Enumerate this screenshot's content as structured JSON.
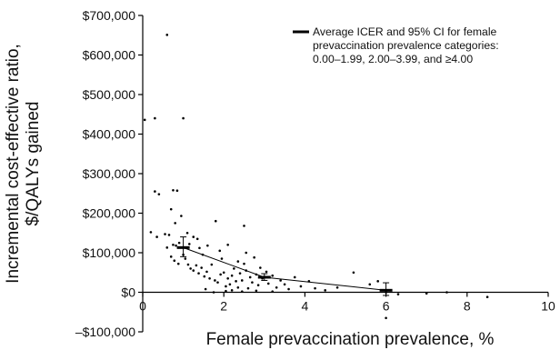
{
  "chart_data": {
    "type": "scatter",
    "xlabel": "Female prevaccination prevalence, %",
    "ylabel_lines": [
      "Incremental cost-effective ratio,",
      "$/QALYs gained"
    ],
    "xlim": [
      0,
      10
    ],
    "ylim": [
      -100000,
      700000
    ],
    "x_ticks": [
      {
        "value": 0,
        "label": "0"
      },
      {
        "value": 2,
        "label": "2"
      },
      {
        "value": 4,
        "label": "4"
      },
      {
        "value": 6,
        "label": "6"
      },
      {
        "value": 8,
        "label": "8"
      },
      {
        "value": 10,
        "label": "10"
      }
    ],
    "y_ticks": [
      {
        "value": -100000,
        "label": "–$100,000"
      },
      {
        "value": 0,
        "label": "$0"
      },
      {
        "value": 100000,
        "label": "$100,000"
      },
      {
        "value": 200000,
        "label": "$200,000"
      },
      {
        "value": 300000,
        "label": "$300,000"
      },
      {
        "value": 400000,
        "label": "$400,000"
      },
      {
        "value": 500000,
        "label": "$500,000"
      },
      {
        "value": 600000,
        "label": "$600,000"
      },
      {
        "value": 700000,
        "label": "$700,000"
      }
    ],
    "legend": {
      "lines": [
        "Average ICER and  95% CI for female",
        "prevaccination prevalence categories:",
        "0.00–1.99, 2.00–3.99, and ≥4.00"
      ],
      "placement": "top-right"
    },
    "averages": [
      {
        "x": 1.0,
        "y": 113000,
        "ci_low": 90000,
        "ci_high": 140000
      },
      {
        "x": 3.0,
        "y": 38000,
        "ci_low": 30000,
        "ci_high": 47000
      },
      {
        "x": 6.0,
        "y": 5000,
        "ci_low": -8000,
        "ci_high": 24000
      }
    ],
    "points": [
      [
        0.05,
        436000
      ],
      [
        0.3,
        440000
      ],
      [
        0.6,
        651000
      ],
      [
        1.0,
        440000
      ],
      [
        0.3,
        255000
      ],
      [
        0.4,
        248000
      ],
      [
        0.75,
        258000
      ],
      [
        0.85,
        257000
      ],
      [
        0.2,
        152000
      ],
      [
        0.35,
        140000
      ],
      [
        0.55,
        147000
      ],
      [
        0.65,
        145000
      ],
      [
        0.7,
        210000
      ],
      [
        0.8,
        175000
      ],
      [
        0.95,
        193000
      ],
      [
        1.8,
        180000
      ],
      [
        2.5,
        168000
      ],
      [
        1.1,
        150000
      ],
      [
        1.25,
        140000
      ],
      [
        1.35,
        135000
      ],
      [
        0.6,
        113000
      ],
      [
        0.75,
        120000
      ],
      [
        0.82,
        118000
      ],
      [
        0.9,
        125000
      ],
      [
        1.15,
        122000
      ],
      [
        1.4,
        112000
      ],
      [
        1.6,
        118000
      ],
      [
        1.9,
        105000
      ],
      [
        2.1,
        120000
      ],
      [
        0.7,
        90000
      ],
      [
        0.78,
        80000
      ],
      [
        0.88,
        72000
      ],
      [
        1.0,
        95000
      ],
      [
        1.05,
        85000
      ],
      [
        1.12,
        70000
      ],
      [
        1.18,
        60000
      ],
      [
        1.25,
        55000
      ],
      [
        1.32,
        68000
      ],
      [
        1.38,
        48000
      ],
      [
        1.45,
        62000
      ],
      [
        1.52,
        40000
      ],
      [
        1.58,
        52000
      ],
      [
        1.65,
        35000
      ],
      [
        1.7,
        70000
      ],
      [
        1.78,
        30000
      ],
      [
        1.85,
        25000
      ],
      [
        1.92,
        45000
      ],
      [
        2.0,
        50000
      ],
      [
        2.05,
        15000
      ],
      [
        2.1,
        35000
      ],
      [
        2.15,
        20000
      ],
      [
        2.2,
        42000
      ],
      [
        2.25,
        60000
      ],
      [
        2.3,
        28000
      ],
      [
        2.35,
        12000
      ],
      [
        2.4,
        48000
      ],
      [
        2.45,
        30000
      ],
      [
        2.5,
        72000
      ],
      [
        2.55,
        55000
      ],
      [
        2.6,
        10000
      ],
      [
        2.65,
        38000
      ],
      [
        2.7,
        25000
      ],
      [
        2.75,
        88000
      ],
      [
        2.8,
        45000
      ],
      [
        2.85,
        18000
      ],
      [
        2.9,
        62000
      ],
      [
        2.95,
        35000
      ],
      [
        3.05,
        52000
      ],
      [
        3.1,
        22000
      ],
      [
        3.2,
        42000
      ],
      [
        3.3,
        12000
      ],
      [
        3.4,
        30000
      ],
      [
        3.5,
        20000
      ],
      [
        3.6,
        8000
      ],
      [
        3.75,
        38000
      ],
      [
        3.9,
        15000
      ],
      [
        4.1,
        28000
      ],
      [
        4.25,
        10000
      ],
      [
        4.5,
        5000
      ],
      [
        4.8,
        12000
      ],
      [
        5.2,
        50000
      ],
      [
        5.6,
        20000
      ],
      [
        5.8,
        28000
      ],
      [
        6.0,
        0
      ],
      [
        6.0,
        -65000
      ],
      [
        6.3,
        -5000
      ],
      [
        7.0,
        -3000
      ],
      [
        7.5,
        0
      ],
      [
        8.5,
        -12000
      ],
      [
        1.55,
        8000
      ],
      [
        1.75,
        0
      ],
      [
        2.05,
        3000
      ],
      [
        2.2,
        5000
      ],
      [
        2.45,
        2000
      ],
      [
        2.8,
        4000
      ],
      [
        3.2,
        2000
      ],
      [
        2.55,
        100000
      ],
      [
        1.95,
        85000
      ],
      [
        1.48,
        95000
      ],
      [
        2.35,
        78000
      ]
    ]
  }
}
